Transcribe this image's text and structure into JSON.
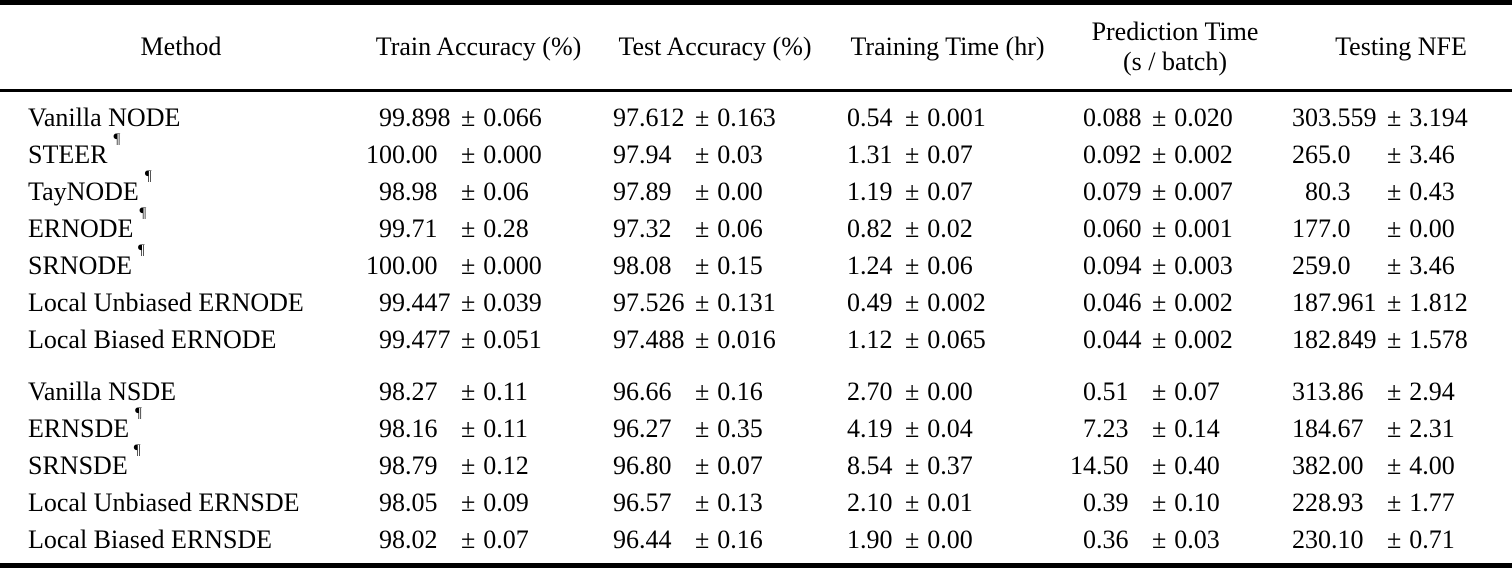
{
  "plus_minus": "±",
  "table": {
    "columns": [
      {
        "key": "method",
        "label": "Method",
        "label2": ""
      },
      {
        "key": "train-accuracy",
        "label": "Train Accuracy (%)",
        "label2": ""
      },
      {
        "key": "test-accuracy",
        "label": "Test Accuracy (%)",
        "label2": ""
      },
      {
        "key": "training-time",
        "label": "Training Time (hr)",
        "label2": ""
      },
      {
        "key": "prediction-time",
        "label": "Prediction Time",
        "label2": "(s / batch)"
      },
      {
        "key": "testing-nfe",
        "label": "Testing NFE",
        "label2": ""
      }
    ],
    "groups": [
      {
        "name": "node-methods",
        "rows": [
          {
            "method": "Vanilla NODE",
            "mark": "",
            "cells": [
              {
                "mean": "99.898",
                "err": "0.066"
              },
              {
                "mean": "97.612",
                "err": "0.163"
              },
              {
                "mean": "0.54",
                "err": "0.001"
              },
              {
                "mean": "0.088",
                "err": "0.020"
              },
              {
                "mean": "303.559",
                "err": "3.194"
              }
            ]
          },
          {
            "method": "STEER",
            "mark": "¶",
            "cells": [
              {
                "mean": "100.00",
                "err": "0.000"
              },
              {
                "mean": "97.94",
                "err": "0.03"
              },
              {
                "mean": "1.31",
                "err": "0.07"
              },
              {
                "mean": "0.092",
                "err": "0.002"
              },
              {
                "mean": "265.0",
                "err": "3.46"
              }
            ]
          },
          {
            "method": "TayNODE",
            "mark": "¶",
            "cells": [
              {
                "mean": "98.98",
                "err": "0.06"
              },
              {
                "mean": "97.89",
                "err": "0.00"
              },
              {
                "mean": "1.19",
                "err": "0.07"
              },
              {
                "mean": "0.079",
                "err": "0.007"
              },
              {
                "mean": "80.3",
                "err": "0.43"
              }
            ]
          },
          {
            "method": "ERNODE",
            "mark": "¶",
            "cells": [
              {
                "mean": "99.71",
                "err": "0.28"
              },
              {
                "mean": "97.32",
                "err": "0.06"
              },
              {
                "mean": "0.82",
                "err": "0.02"
              },
              {
                "mean": "0.060",
                "err": "0.001"
              },
              {
                "mean": "177.0",
                "err": "0.00"
              }
            ]
          },
          {
            "method": "SRNODE",
            "mark": "¶",
            "cells": [
              {
                "mean": "100.00",
                "err": "0.000"
              },
              {
                "mean": "98.08",
                "err": "0.15"
              },
              {
                "mean": "1.24",
                "err": "0.06"
              },
              {
                "mean": "0.094",
                "err": "0.003"
              },
              {
                "mean": "259.0",
                "err": "3.46"
              }
            ]
          },
          {
            "method": "Local Unbiased ERNODE",
            "mark": "",
            "cells": [
              {
                "mean": "99.447",
                "err": "0.039"
              },
              {
                "mean": "97.526",
                "err": "0.131"
              },
              {
                "mean": "0.49",
                "err": "0.002"
              },
              {
                "mean": "0.046",
                "err": "0.002"
              },
              {
                "mean": "187.961",
                "err": "1.812"
              }
            ]
          },
          {
            "method": "Local Biased ERNODE",
            "mark": "",
            "cells": [
              {
                "mean": "99.477",
                "err": "0.051"
              },
              {
                "mean": "97.488",
                "err": "0.016"
              },
              {
                "mean": "1.12",
                "err": "0.065"
              },
              {
                "mean": "0.044",
                "err": "0.002"
              },
              {
                "mean": "182.849",
                "err": "1.578"
              }
            ]
          }
        ]
      },
      {
        "name": "nsde-methods",
        "rows": [
          {
            "method": "Vanilla NSDE",
            "mark": "",
            "cells": [
              {
                "mean": "98.27",
                "err": "0.11"
              },
              {
                "mean": "96.66",
                "err": "0.16"
              },
              {
                "mean": "2.70",
                "err": "0.00"
              },
              {
                "mean": "0.51",
                "err": "0.07"
              },
              {
                "mean": "313.86",
                "err": "2.94"
              }
            ]
          },
          {
            "method": "ERNSDE",
            "mark": "¶",
            "cells": [
              {
                "mean": "98.16",
                "err": "0.11"
              },
              {
                "mean": "96.27",
                "err": "0.35"
              },
              {
                "mean": "4.19",
                "err": "0.04"
              },
              {
                "mean": "7.23",
                "err": "0.14"
              },
              {
                "mean": "184.67",
                "err": "2.31"
              }
            ]
          },
          {
            "method": "SRNSDE",
            "mark": "¶",
            "cells": [
              {
                "mean": "98.79",
                "err": "0.12"
              },
              {
                "mean": "96.80",
                "err": "0.07"
              },
              {
                "mean": "8.54",
                "err": "0.37"
              },
              {
                "mean": "14.50",
                "err": "0.40"
              },
              {
                "mean": "382.00",
                "err": "4.00"
              }
            ]
          },
          {
            "method": "Local Unbiased ERNSDE",
            "mark": "",
            "cells": [
              {
                "mean": "98.05",
                "err": "0.09"
              },
              {
                "mean": "96.57",
                "err": "0.13"
              },
              {
                "mean": "2.10",
                "err": "0.01"
              },
              {
                "mean": "0.39",
                "err": "0.10"
              },
              {
                "mean": "228.93",
                "err": "1.77"
              }
            ]
          },
          {
            "method": "Local Biased ERNSDE",
            "mark": "",
            "cells": [
              {
                "mean": "98.02",
                "err": "0.07"
              },
              {
                "mean": "96.44",
                "err": "0.16"
              },
              {
                "mean": "1.90",
                "err": "0.00"
              },
              {
                "mean": "0.36",
                "err": "0.03"
              },
              {
                "mean": "230.10",
                "err": "0.71"
              }
            ]
          }
        ]
      }
    ]
  }
}
